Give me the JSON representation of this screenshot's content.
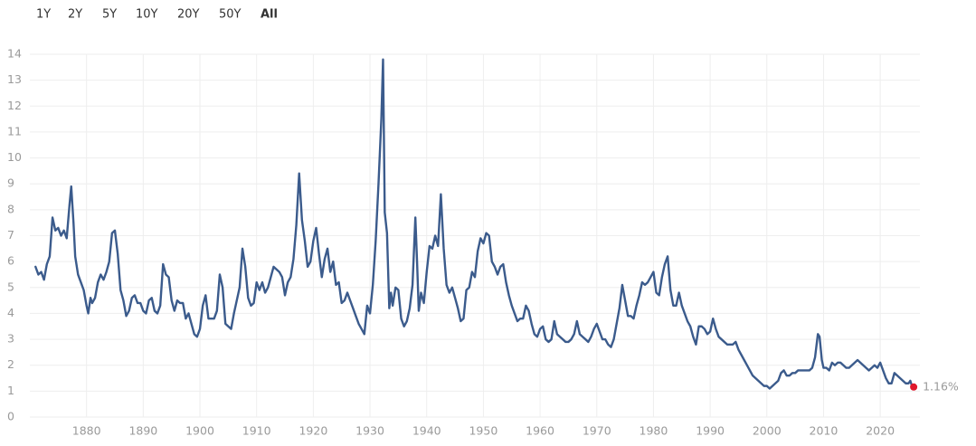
{
  "range_buttons": {
    "labels": [
      "1Y",
      "2Y",
      "5Y",
      "10Y",
      "20Y",
      "50Y",
      "All"
    ],
    "active": 6
  },
  "chart_data": {
    "type": "line",
    "xlim": [
      1870,
      2027
    ],
    "ylim": [
      0,
      14
    ],
    "xticks": [
      1880,
      1890,
      1900,
      1910,
      1920,
      1930,
      1940,
      1950,
      1960,
      1970,
      1980,
      1990,
      2000,
      2010,
      2020
    ],
    "yticks": [
      0,
      1,
      2,
      3,
      4,
      5,
      6,
      7,
      8,
      9,
      10,
      11,
      12,
      13,
      14
    ],
    "grid": true,
    "x": [
      1871,
      1871.5,
      1872,
      1872.5,
      1873,
      1873.5,
      1874,
      1874.5,
      1875,
      1875.5,
      1876,
      1876.5,
      1877,
      1877.3,
      1877.7,
      1878,
      1878.5,
      1879,
      1879.5,
      1880,
      1880.3,
      1880.7,
      1881,
      1881.5,
      1882,
      1882.5,
      1883,
      1883.5,
      1884,
      1884.5,
      1885,
      1885.5,
      1886,
      1886.5,
      1887,
      1887.5,
      1888,
      1888.5,
      1889,
      1889.5,
      1890,
      1890.5,
      1891,
      1891.5,
      1892,
      1892.5,
      1893,
      1893.5,
      1894,
      1894.5,
      1895,
      1895.5,
      1896,
      1896.5,
      1897,
      1897.5,
      1898,
      1898.5,
      1899,
      1899.5,
      1900,
      1900.5,
      1901,
      1901.5,
      1902,
      1902.5,
      1903,
      1903.5,
      1904,
      1904.5,
      1905,
      1905.5,
      1906,
      1906.5,
      1907,
      1907.5,
      1908,
      1908.5,
      1909,
      1909.5,
      1910,
      1910.5,
      1911,
      1911.5,
      1912,
      1912.5,
      1913,
      1913.5,
      1914,
      1914.5,
      1915,
      1915.5,
      1916,
      1916.5,
      1917,
      1917.5,
      1918,
      1918.5,
      1919,
      1919.5,
      1920,
      1920.5,
      1921,
      1921.5,
      1922,
      1922.5,
      1923,
      1923.5,
      1924,
      1924.5,
      1925,
      1925.5,
      1926,
      1926.5,
      1927,
      1927.5,
      1928,
      1928.5,
      1929,
      1929.5,
      1930,
      1930.5,
      1931,
      1931.5,
      1932,
      1932.3,
      1932.6,
      1933,
      1933.4,
      1933.7,
      1934,
      1934.5,
      1935,
      1935.5,
      1936,
      1936.5,
      1937,
      1937.5,
      1938,
      1938.3,
      1938.6,
      1939,
      1939.5,
      1940,
      1940.5,
      1941,
      1941.5,
      1942,
      1942.5,
      1943,
      1943.5,
      1944,
      1944.5,
      1945,
      1945.5,
      1946,
      1946.5,
      1947,
      1947.5,
      1948,
      1948.5,
      1949,
      1949.5,
      1950,
      1950.5,
      1951,
      1951.5,
      1952,
      1952.5,
      1953,
      1953.5,
      1954,
      1954.5,
      1955,
      1955.5,
      1956,
      1956.5,
      1957,
      1957.5,
      1958,
      1958.5,
      1959,
      1959.5,
      1960,
      1960.5,
      1961,
      1961.5,
      1962,
      1962.5,
      1963,
      1963.5,
      1964,
      1964.5,
      1965,
      1965.5,
      1966,
      1966.5,
      1967,
      1967.5,
      1968,
      1968.5,
      1969,
      1969.5,
      1970,
      1970.5,
      1971,
      1971.5,
      1972,
      1972.5,
      1973,
      1973.5,
      1974,
      1974.5,
      1975,
      1975.5,
      1976,
      1976.5,
      1977,
      1977.5,
      1978,
      1978.5,
      1979,
      1979.5,
      1980,
      1980.5,
      1981,
      1981.5,
      1982,
      1982.5,
      1983,
      1983.5,
      1984,
      1984.5,
      1985,
      1985.5,
      1986,
      1986.5,
      1987,
      1987.5,
      1988,
      1988.5,
      1989,
      1989.5,
      1990,
      1990.5,
      1991,
      1991.5,
      1992,
      1992.5,
      1993,
      1993.5,
      1994,
      1994.5,
      1995,
      1995.5,
      1996,
      1996.5,
      1997,
      1997.5,
      1998,
      1998.5,
      1999,
      1999.5,
      2000,
      2000.5,
      2001,
      2001.5,
      2002,
      2002.5,
      2003,
      2003.5,
      2004,
      2004.5,
      2005,
      2005.5,
      2006,
      2006.5,
      2007,
      2007.5,
      2008,
      2008.5,
      2009,
      2009.3,
      2009.7,
      2010,
      2010.5,
      2011,
      2011.5,
      2012,
      2012.5,
      2013,
      2013.5,
      2014,
      2014.5,
      2015,
      2015.5,
      2016,
      2016.5,
      2017,
      2017.5,
      2018,
      2018.5,
      2019,
      2019.5,
      2020,
      2020.5,
      2021,
      2021.5,
      2022,
      2022.5,
      2023,
      2023.5,
      2024,
      2024.5,
      2025,
      2025.3,
      2025.6,
      2025.9
    ],
    "series": [
      {
        "color": "#3b5b8c",
        "values": [
          5.8,
          5.5,
          5.6,
          5.3,
          5.9,
          6.2,
          7.7,
          7.2,
          7.3,
          7.0,
          7.2,
          6.9,
          8.2,
          8.9,
          7.5,
          6.2,
          5.5,
          5.2,
          4.9,
          4.3,
          4.0,
          4.6,
          4.4,
          4.6,
          5.2,
          5.5,
          5.3,
          5.6,
          6.0,
          7.1,
          7.2,
          6.3,
          4.9,
          4.5,
          3.9,
          4.1,
          4.6,
          4.7,
          4.4,
          4.4,
          4.1,
          4.0,
          4.5,
          4.6,
          4.1,
          4.0,
          4.3,
          5.9,
          5.5,
          5.4,
          4.5,
          4.1,
          4.5,
          4.4,
          4.4,
          3.8,
          4.0,
          3.6,
          3.2,
          3.1,
          3.4,
          4.3,
          4.7,
          3.8,
          3.8,
          3.8,
          4.1,
          5.5,
          5.0,
          3.6,
          3.5,
          3.4,
          4.0,
          4.5,
          5.0,
          6.5,
          5.8,
          4.6,
          4.3,
          4.4,
          5.2,
          4.9,
          5.2,
          4.8,
          5.0,
          5.4,
          5.8,
          5.7,
          5.6,
          5.4,
          4.7,
          5.2,
          5.4,
          6.1,
          7.4,
          9.4,
          7.6,
          6.8,
          5.8,
          6.0,
          6.8,
          7.3,
          6.3,
          5.4,
          6.1,
          6.5,
          5.6,
          6.0,
          5.1,
          5.2,
          4.4,
          4.5,
          4.8,
          4.5,
          4.2,
          3.9,
          3.6,
          3.4,
          3.2,
          4.3,
          4.0,
          5.1,
          6.8,
          9.0,
          11.5,
          13.8,
          7.9,
          7.1,
          4.2,
          4.8,
          4.3,
          5.0,
          4.9,
          3.8,
          3.5,
          3.7,
          4.2,
          5.1,
          7.7,
          6.0,
          4.1,
          4.8,
          4.4,
          5.6,
          6.6,
          6.5,
          7.0,
          6.6,
          8.6,
          6.5,
          5.1,
          4.8,
          5.0,
          4.6,
          4.2,
          3.7,
          3.8,
          4.9,
          5.0,
          5.6,
          5.4,
          6.4,
          6.9,
          6.7,
          7.1,
          7.0,
          6.0,
          5.8,
          5.5,
          5.8,
          5.9,
          5.2,
          4.7,
          4.3,
          4.0,
          3.7,
          3.8,
          3.8,
          4.3,
          4.1,
          3.6,
          3.2,
          3.1,
          3.4,
          3.5,
          3.0,
          2.9,
          3.0,
          3.7,
          3.2,
          3.1,
          3.0,
          2.9,
          2.9,
          3.0,
          3.2,
          3.7,
          3.2,
          3.1,
          3.0,
          2.9,
          3.1,
          3.4,
          3.6,
          3.3,
          3.0,
          3.0,
          2.8,
          2.7,
          3.0,
          3.6,
          4.2,
          5.1,
          4.5,
          3.9,
          3.9,
          3.8,
          4.3,
          4.7,
          5.2,
          5.1,
          5.2,
          5.4,
          5.6,
          4.8,
          4.7,
          5.4,
          5.9,
          6.2,
          4.9,
          4.3,
          4.3,
          4.8,
          4.3,
          4.0,
          3.7,
          3.5,
          3.1,
          2.8,
          3.5,
          3.5,
          3.4,
          3.2,
          3.3,
          3.8,
          3.4,
          3.1,
          3.0,
          2.9,
          2.8,
          2.8,
          2.8,
          2.9,
          2.6,
          2.4,
          2.2,
          2.0,
          1.8,
          1.6,
          1.5,
          1.4,
          1.3,
          1.2,
          1.2,
          1.1,
          1.2,
          1.3,
          1.4,
          1.7,
          1.8,
          1.6,
          1.6,
          1.7,
          1.7,
          1.8,
          1.8,
          1.8,
          1.8,
          1.8,
          1.9,
          2.3,
          3.2,
          3.1,
          2.2,
          1.9,
          1.9,
          1.8,
          2.1,
          2.0,
          2.1,
          2.1,
          2.0,
          1.9,
          1.9,
          2.0,
          2.1,
          2.2,
          2.1,
          2.0,
          1.9,
          1.8,
          1.9,
          2.0,
          1.9,
          2.1,
          1.8,
          1.5,
          1.3,
          1.3,
          1.7,
          1.6,
          1.5,
          1.4,
          1.3,
          1.3,
          1.4,
          1.2,
          1.16
        ]
      }
    ],
    "annotations": [
      {
        "x": 2025.9,
        "y": 1.16,
        "label": "1.16%",
        "color": "#e0182d"
      }
    ]
  }
}
